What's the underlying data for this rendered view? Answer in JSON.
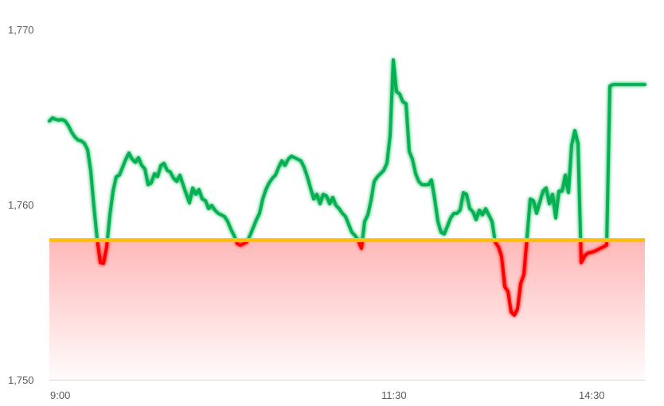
{
  "chart_data": {
    "type": "line",
    "title": "",
    "xlabel": "",
    "ylabel": "",
    "ylim": [
      1750,
      1770
    ],
    "y_ticks": [
      {
        "value": 1770,
        "label": "1,770"
      },
      {
        "value": 1760,
        "label": "1,760"
      },
      {
        "value": 1750,
        "label": "1,750"
      }
    ],
    "x_ticks": [
      {
        "index": 0,
        "label": "9:00"
      },
      {
        "index": 104,
        "label": "11:30"
      },
      {
        "index": 166,
        "label": "14:30"
      }
    ],
    "grid": false,
    "baseline": 1757.95,
    "colors": {
      "above": "#00B050",
      "below": "#FF0000",
      "baseline": "#FFC000",
      "area_below": "#FF9999"
    },
    "values": [
      1764.77,
      1764.95,
      1764.86,
      1764.82,
      1764.86,
      1764.77,
      1764.5,
      1764.13,
      1763.86,
      1763.68,
      1763.64,
      1763.5,
      1763.13,
      1761.91,
      1759.86,
      1758.04,
      1756.68,
      1756.64,
      1757.59,
      1759.41,
      1760.77,
      1761.59,
      1761.68,
      1762.13,
      1762.59,
      1762.95,
      1762.59,
      1762.41,
      1762.68,
      1762.23,
      1762.04,
      1761.13,
      1761.23,
      1761.77,
      1761.59,
      1762.23,
      1762.36,
      1761.95,
      1761.86,
      1761.5,
      1761.32,
      1761.68,
      1761.13,
      1760.59,
      1760.09,
      1760.95,
      1760.59,
      1760.86,
      1760.32,
      1760.23,
      1759.77,
      1759.95,
      1759.68,
      1759.5,
      1759.41,
      1759.32,
      1759.04,
      1758.59,
      1758.23,
      1757.77,
      1757.68,
      1757.77,
      1757.86,
      1758.23,
      1758.68,
      1759.13,
      1759.5,
      1760.32,
      1760.86,
      1761.23,
      1761.5,
      1761.68,
      1762.13,
      1762.5,
      1762.23,
      1762.59,
      1762.77,
      1762.68,
      1762.59,
      1762.5,
      1762.13,
      1761.59,
      1760.95,
      1760.32,
      1760.59,
      1760.04,
      1760.59,
      1760.5,
      1760.04,
      1760.41,
      1759.95,
      1759.77,
      1759.5,
      1759.32,
      1758.86,
      1758.41,
      1758.23,
      1757.95,
      1757.5,
      1759.04,
      1759.41,
      1760.23,
      1761.32,
      1761.59,
      1761.77,
      1761.95,
      1762.36,
      1763.95,
      1768.27,
      1766.45,
      1766.32,
      1765.86,
      1765.77,
      1763.04,
      1762.59,
      1761.77,
      1761.32,
      1761.13,
      1761.13,
      1761.13,
      1761.41,
      1760.32,
      1759.04,
      1758.41,
      1758.32,
      1758.77,
      1759.23,
      1759.5,
      1759.5,
      1759.68,
      1760.68,
      1760.59,
      1759.77,
      1759.59,
      1759.13,
      1759.68,
      1759.41,
      1759.77,
      1759.41,
      1759.04,
      1757.86,
      1757.59,
      1757.04,
      1755.32,
      1755.04,
      1753.86,
      1753.68,
      1754.04,
      1755.5,
      1756.0,
      1758.13,
      1760.32,
      1760.23,
      1759.5,
      1760.13,
      1760.77,
      1760.95,
      1760.04,
      1760.59,
      1759.23,
      1760.77,
      1760.77,
      1761.68,
      1760.68,
      1763.41,
      1764.23,
      1763.5,
      1756.68,
      1757.04,
      1757.23,
      1757.27,
      1757.32,
      1757.41,
      1757.5,
      1757.59,
      1757.68,
      1766.77,
      1766.86,
      1766.86,
      1766.86,
      1766.86,
      1766.86,
      1766.86,
      1766.86,
      1766.86,
      1766.86,
      1766.86,
      1766.86
    ]
  }
}
